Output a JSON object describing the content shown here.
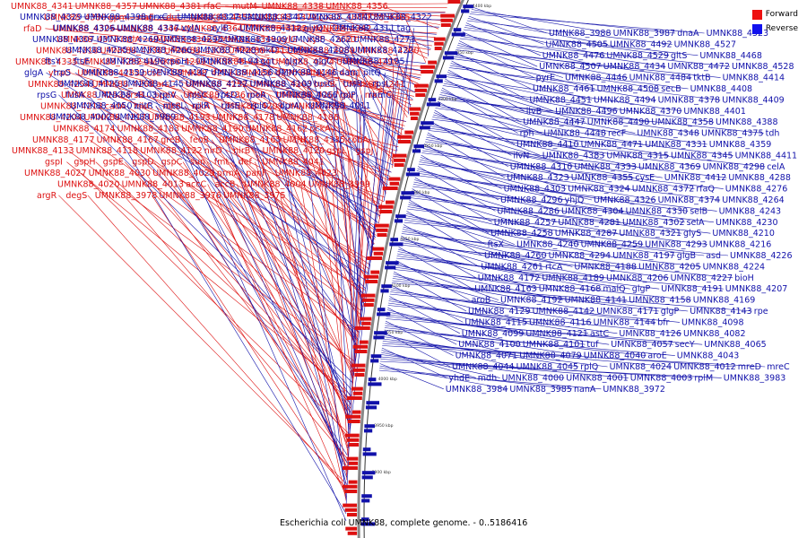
{
  "legend": {
    "forward": {
      "label": "Forward",
      "color": "#ee1111"
    },
    "reverse": {
      "label": "Reverse",
      "color": "#1111ee"
    }
  },
  "footer": "Escherichia coli UMNK88, complete genome. - 0..5186416",
  "scale_ticks": [
    "4400 kbp",
    "4350 kbp",
    "4300 kbp",
    "4250 kbp",
    "4200 kbp",
    "4150 kbp",
    "4100 kbp",
    "4050 kbp",
    "4000 kbp",
    "3950 kbp",
    "3900 kbp"
  ],
  "forward_labels": [
    "UMNK88_4341",
    "UMNK88_4357",
    "UMNK88_4381",
    "rfaC",
    "mutM",
    "UMNK88_4338",
    "UMNK88_4356",
    "UMNK88_4380",
    "gpmI",
    "rfaF",
    "dut",
    "UMNK88_4353",
    "UMNK88_4379",
    "coaD",
    "UMNK88_4365",
    "rfaD",
    "UMNK88_4325",
    "UMNK88_4346",
    "UMNK88_4364",
    "UMNK88_4382",
    "UMNK88_4342",
    "UMNK88_4373",
    "mtlA",
    "UMNK88_4308",
    "UMNK88_4319",
    "xylG",
    "xylF",
    "araD",
    "UMNK88_4318",
    "UMNK88_4336",
    "UMNK88_4305",
    "UMNK88_4317",
    "UMNK88_4289",
    "UMNK88_4300",
    "UMNK88_4335",
    "UMNK88_4282",
    "UMNK88_4299",
    "UMNK88_4334",
    "UMNK88_4274",
    "UMNK88_4297",
    "yhaO",
    "UMNK88_4283",
    "bcsE",
    "UMNK88_4277",
    "UMNK88_4290",
    "UMNK88_4301",
    "UMNK88_4254",
    "UMNK88_4268",
    "arsC",
    "UMNK88_4252",
    "UMNK88_4263",
    "bpeB",
    "UMNK88_4241",
    "UMNK88_4253",
    "arsB",
    "bpeA",
    "UMNK88_4236",
    "nikR",
    "UMNK88_4267",
    "gor",
    "nikE",
    "UMNK88_4213",
    "cadA",
    "nikC",
    "nikB",
    "nikA",
    "UMNK88_4209",
    "UMNK88_4221",
    "UMNK88_4204",
    "UMNK88_4217",
    "UMNK88_4193",
    "UMNK88_4178",
    "UMNK88_4186",
    "UMNK88_4174",
    "UMNK88_4183",
    "UMNK88_4190",
    "UMNK88_4162",
    "pckA",
    "UMNK88_4177",
    "UMNK88_4167",
    "greB",
    "feoB",
    "UMNK88_4165",
    "UMNK88_4135",
    "cobA",
    "UMNK88_4133",
    "UMNK88_4118",
    "UMNK88_4122",
    "nirD",
    "nirB",
    "UMNK88_4120",
    "gspL",
    "gspJ",
    "gspI",
    "gspH",
    "gspE",
    "gspD",
    "gspC",
    "sun",
    "fmt",
    "def",
    "UMNK88_4041",
    "UMNK88_4027",
    "UMNK88_4030",
    "UMNK88_4029",
    "prmA",
    "panF",
    "UMNK88_4023",
    "UMNK88_4020",
    "UMNK88_4013",
    "accC",
    "accB",
    "UMNK88_4004",
    "UMNK88_3999",
    "argR",
    "degS",
    "UMNK88_3978",
    "UMNK88_3976",
    "UMNK88_3975"
  ],
  "reverse_labels": [
    "UMNK88_4329",
    "UMNK88_4398",
    "grxC",
    "UMNK88_4327",
    "UMNK88_4347",
    "UMNK88_4384",
    "UMNK88_4322",
    "UMNK88_4306",
    "UMNK88_4337",
    "xylA",
    "xylB",
    "UMNK88_4312",
    "glyQ",
    "UMNK88_4311",
    "tag",
    "UMNK88_4307",
    "UMNK88_4269",
    "UMNK88_4295",
    "UMNK88_4309",
    "UMNK88_4262",
    "UMNK88_4273",
    "UMNK88_4235",
    "UMNK88_4266",
    "UMNK88_4228",
    "nikD",
    "UMNK88_4208",
    "UMNK88_4222",
    "ftsY",
    "ftsE",
    "UMNK88_4196",
    "rpoH",
    "UMNK88_4194",
    "ggt",
    "glgX",
    "glgC",
    "UMNK88_4195",
    "glgA",
    "trpS",
    "UMNK88_4159",
    "UMNK88_4147",
    "UMNK88_4156",
    "UMNK88_4146",
    "dam",
    "pitQ",
    "UMNK88_4125",
    "UMNK88_4145",
    "UMNK88_4127",
    "UMNK88_4109",
    "tusC",
    "tusB",
    "rpsL",
    "rpsG",
    "fusA",
    "UMNK88_4103",
    "rplV",
    "rpsC",
    "rpsD",
    "rpoA",
    "UMNK88_4066",
    "rplP",
    "rpmC",
    "UMNK88_4050",
    "zntR",
    "mscL",
    "rplR",
    "rpsE",
    "rplO",
    "dprA",
    "UMNK88_4011",
    "UMNK88_4002",
    "UMNK88_3989",
    "UMNK88_3988",
    "UMNK88_3987",
    "dnaA",
    "UMNK88_4523",
    "UMNK88_4505",
    "UMNK88_4492",
    "UMNK88_4527",
    "UMNK88_4476",
    "UMNK88_4529",
    "gltS",
    "UMNK88_4468",
    "UMNK88_4507",
    "UMNK88_4434",
    "UMNK88_4472",
    "UMNK88_4528",
    "pyrE",
    "UMNK88_4446",
    "UMNK88_4484",
    "tktB",
    "UMNK88_4414",
    "UMNK88_4461",
    "UMNK88_4508",
    "secB",
    "UMNK88_4408",
    "UMNK88_4451",
    "UMNK88_4494",
    "UMNK88_4378",
    "UMNK88_4409",
    "ilvB",
    "UMNK88_4496",
    "UMNK88_4370",
    "UMNK88_4401",
    "UMNK88_4447",
    "UMNK88_4490",
    "UMNK88_4358",
    "UMNK88_4388",
    "rph",
    "UMNK88_4448",
    "recF",
    "UMNK88_4348",
    "UMNK88_4375",
    "tdh",
    "UMNK88_4410",
    "UMNK88_4471",
    "UMNK88_4331",
    "UMNK88_4359",
    "ilvN",
    "UMNK88_4383",
    "UMNK88_4315",
    "UMNK88_4345",
    "UMNK88_4411",
    "UMNK88_4310",
    "UMNK88_4333",
    "UMNK88_4369",
    "UMNK88_4298",
    "celA",
    "UMNK88_4323",
    "UMNK88_4355",
    "cysE",
    "UMNK88_4412",
    "UMNK88_4288",
    "UMNK88_4303",
    "UMNK88_4324",
    "UMNK88_4372",
    "rfaQ",
    "UMNK88_4276",
    "UMNK88_4296",
    "yhjQ",
    "UMNK88_4326",
    "UMNK88_4374",
    "UMNK88_4264",
    "UMNK88_4286",
    "UMNK88_4304",
    "UMNK88_4330",
    "selB",
    "UMNK88_4243",
    "UMNK88_4257",
    "UMNK88_4281",
    "UMNK88_4302",
    "selA",
    "UMNK88_4230",
    "UMNK88_4258",
    "UMNK88_4287",
    "UMNK88_4321",
    "glyS",
    "UMNK88_4210",
    "ftsX",
    "UMNK88_4240",
    "UMNK88_4259",
    "UMNK88_4293",
    "UMNK88_4216",
    "UMNK88_4260",
    "UMNK88_4294",
    "UMNK88_4197",
    "glgB",
    "asd",
    "UMNK88_4226",
    "UMNK88_4261",
    "rtcA",
    "UMNK88_4188",
    "UMNK88_4205",
    "UMNK88_4224",
    "UMNK88_4172",
    "UMNK88_4189",
    "UMNK88_4206",
    "UMNK88_4227",
    "bioH",
    "UMNK88_4163",
    "UMNK88_4168",
    "malQ",
    "glgP",
    "UMNK88_4191",
    "UMNK88_4207",
    "aroB",
    "UMNK88_4192",
    "UMNK88_4141",
    "UMNK88_4158",
    "UMNK88_4169",
    "UMNK88_4129",
    "UMNK88_4142",
    "UMNK88_4171",
    "glgP",
    "UMNK88_4143",
    "rpe",
    "UMNK88_4115",
    "UMNK88_4116",
    "UMNK88_4144",
    "bfr",
    "UMNK88_4098",
    "UMNK88_4099",
    "UMNK88_4121",
    "astC",
    "UMNK88_4126",
    "UMNK88_4082",
    "UMNK88_4100",
    "UMNK88_4101",
    "tuf",
    "UMNK88_4057",
    "secY",
    "UMNK88_4065",
    "UMNK88_4071",
    "UMNK88_4079",
    "UMNK88_4040",
    "aroE",
    "UMNK88_4043",
    "UMNK88_4044",
    "UMNK88_4045",
    "rplQ",
    "UMNK88_4024",
    "UMNK88_4012",
    "mreD",
    "mreC",
    "yhdE",
    "mdh",
    "UMNK88_4000",
    "UMNK88_4001",
    "UMNK88_4003",
    "rplM",
    "UMNK88_3983",
    "UMNK88_3984",
    "UMNK88_3985",
    "nanA",
    "UMNK88_3972"
  ]
}
